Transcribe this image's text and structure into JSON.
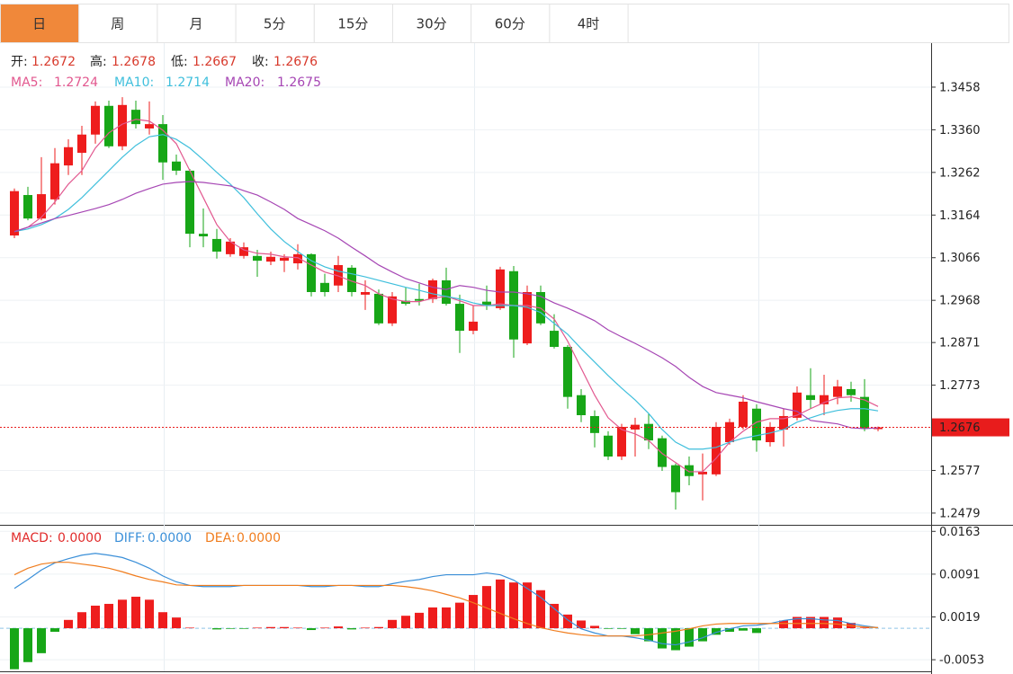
{
  "tabs": [
    "日",
    "周",
    "月",
    "5分",
    "15分",
    "30分",
    "60分",
    "4时"
  ],
  "active_tab": 0,
  "chart_data": [
    {
      "type": "candlestick",
      "summary": [
        {
          "label": "开:",
          "value": "1.2672"
        },
        {
          "label": "高:",
          "value": "1.2678"
        },
        {
          "label": "低:",
          "value": "1.2667"
        },
        {
          "label": "收:",
          "value": "1.2676"
        }
      ],
      "up_color": "#ee1d1d",
      "down_color": "#17a617",
      "open": [
        1.3117,
        1.321,
        1.3156,
        1.32,
        1.3278,
        1.3307,
        1.3349,
        1.3415,
        1.3322,
        1.3406,
        1.3363,
        1.3373,
        1.3287,
        1.3266,
        1.3121,
        1.3109,
        1.3074,
        1.307,
        1.307,
        1.3057,
        1.3059,
        1.3053,
        1.3074,
        1.3008,
        1.3002,
        1.3043,
        1.2981,
        1.2983,
        1.2915,
        1.2967,
        1.2971,
        1.2971,
        1.3014,
        1.296,
        1.2898,
        1.2965,
        1.295,
        1.3035,
        1.2869,
        1.2987,
        1.2898,
        1.2861,
        1.275,
        1.2702,
        1.2657,
        1.2609,
        1.2671,
        1.2684,
        1.2651,
        1.2589,
        1.2589,
        1.2568,
        1.2568,
        1.2642,
        1.2677,
        1.2719,
        1.2642,
        1.2671,
        1.2698,
        1.275,
        1.2729,
        1.2746,
        1.2764,
        1.2746,
        1.2672
      ],
      "high": [
        1.3225,
        1.3229,
        1.3297,
        1.3318,
        1.3338,
        1.3369,
        1.3425,
        1.3427,
        1.3435,
        1.3427,
        1.3425,
        1.3394,
        1.3303,
        1.327,
        1.3179,
        1.3132,
        1.3111,
        1.3101,
        1.3084,
        1.308,
        1.3074,
        1.3097,
        1.3076,
        1.3029,
        1.307,
        1.3049,
        1.3014,
        1.2993,
        1.2987,
        1.2998,
        1.3006,
        1.3018,
        1.3043,
        1.2981,
        1.2956,
        1.3002,
        1.3045,
        1.3047,
        1.3002,
        1.3002,
        1.2936,
        1.2865,
        1.2764,
        1.2715,
        1.2667,
        1.2684,
        1.2698,
        1.2708,
        1.2657,
        1.2593,
        1.2609,
        1.2616,
        1.2688,
        1.2696,
        1.275,
        1.2729,
        1.2688,
        1.2719,
        1.277,
        1.2812,
        1.2797,
        1.2785,
        1.2781,
        1.2787,
        1.2678
      ],
      "low": [
        1.3111,
        1.3152,
        1.3152,
        1.3188,
        1.3256,
        1.3256,
        1.3328,
        1.3318,
        1.3313,
        1.3363,
        1.3349,
        1.3245,
        1.3256,
        1.309,
        1.309,
        1.3064,
        1.3068,
        1.3064,
        1.3022,
        1.3049,
        1.3033,
        1.3039,
        1.2977,
        1.2977,
        1.2987,
        1.2977,
        1.2946,
        1.2911,
        1.2909,
        1.2956,
        1.2956,
        1.2962,
        1.2956,
        1.2847,
        1.289,
        1.2946,
        1.2946,
        1.2836,
        1.2865,
        1.2911,
        1.2857,
        1.2719,
        1.2688,
        1.263,
        1.2601,
        1.2601,
        1.2609,
        1.2626,
        1.2576,
        1.2487,
        1.2543,
        1.2508,
        1.2564,
        1.2636,
        1.2671,
        1.262,
        1.2632,
        1.2632,
        1.2692,
        1.2719,
        1.2704,
        1.2729,
        1.2735,
        1.2667,
        1.2667
      ],
      "close": [
        1.3219,
        1.3156,
        1.3212,
        1.3283,
        1.332,
        1.3349,
        1.3415,
        1.3322,
        1.3417,
        1.3373,
        1.3373,
        1.3285,
        1.3266,
        1.3121,
        1.3115,
        1.308,
        1.3103,
        1.309,
        1.3059,
        1.3068,
        1.3066,
        1.3074,
        1.2987,
        1.2987,
        1.3049,
        1.2987,
        1.2987,
        1.2915,
        1.2977,
        1.296,
        1.2967,
        1.3014,
        1.296,
        1.2898,
        1.2919,
        1.2956,
        1.3039,
        1.2878,
        1.2987,
        1.2915,
        1.2861,
        1.2746,
        1.2704,
        1.2663,
        1.2609,
        1.2677,
        1.2682,
        1.2646,
        1.2585,
        1.2527,
        1.2564,
        1.2574,
        1.2677,
        1.2688,
        1.2735,
        1.2646,
        1.2677,
        1.2702,
        1.2756,
        1.2739,
        1.275,
        1.277,
        1.275,
        1.2673,
        1.2676
      ],
      "series": [
        {
          "name": "MA5:",
          "last": "1.2724",
          "color": "#e2588f",
          "values": [
            1.3126,
            1.3136,
            1.3159,
            1.3194,
            1.3235,
            1.3266,
            1.3318,
            1.3353,
            1.3373,
            1.3384,
            1.338,
            1.3359,
            1.3328,
            1.3266,
            1.3204,
            1.3142,
            1.3103,
            1.3084,
            1.3076,
            1.3074,
            1.3068,
            1.3066,
            1.3049,
            1.3033,
            1.3024,
            1.3012,
            1.3002,
            1.2983,
            1.2971,
            1.2965,
            1.2965,
            1.2973,
            1.2977,
            1.2967,
            1.2956,
            1.2956,
            1.296,
            1.2956,
            1.2956,
            1.295,
            1.2925,
            1.2874,
            1.2812,
            1.275,
            1.2698,
            1.2671,
            1.2661,
            1.2646,
            1.2616,
            1.2595,
            1.2574,
            1.2574,
            1.2605,
            1.2642,
            1.2667,
            1.2688,
            1.2696,
            1.2696,
            1.2704,
            1.2719,
            1.2733,
            1.2744,
            1.2746,
            1.2739,
            1.2724
          ]
        },
        {
          "name": "MA10:",
          "last": "1.2714",
          "color": "#3fbfdc",
          "values": [
            1.3126,
            1.3132,
            1.3142,
            1.3156,
            1.3177,
            1.3204,
            1.3235,
            1.3266,
            1.3297,
            1.3324,
            1.3344,
            1.3349,
            1.3338,
            1.3318,
            1.3291,
            1.3262,
            1.3235,
            1.3204,
            1.3167,
            1.3132,
            1.3103,
            1.308,
            1.3059,
            1.3045,
            1.3035,
            1.3029,
            1.3022,
            1.3014,
            1.3006,
            1.2998,
            1.2991,
            1.2983,
            1.2977,
            1.2971,
            1.2962,
            1.2956,
            1.2956,
            1.2956,
            1.2952,
            1.294,
            1.2915,
            1.289,
            1.2857,
            1.2826,
            1.2795,
            1.2766,
            1.2739,
            1.2708,
            1.2671,
            1.2642,
            1.2626,
            1.2626,
            1.263,
            1.2642,
            1.2651,
            1.2657,
            1.2663,
            1.2671,
            1.2688,
            1.2698,
            1.2708,
            1.2715,
            1.2719,
            1.2719,
            1.2714
          ]
        },
        {
          "name": "MA20:",
          "last": "1.2675",
          "color": "#a646b4",
          "values": [
            1.3126,
            1.3136,
            1.3146,
            1.3156,
            1.3163,
            1.3171,
            1.3179,
            1.3188,
            1.32,
            1.3214,
            1.3225,
            1.3235,
            1.3239,
            1.3241,
            1.3239,
            1.3235,
            1.3231,
            1.322,
            1.321,
            1.3194,
            1.3177,
            1.3156,
            1.3142,
            1.3128,
            1.3111,
            1.309,
            1.307,
            1.3049,
            1.3033,
            1.3018,
            1.3008,
            1.2998,
            1.2993,
            1.3002,
            1.2998,
            1.2991,
            1.2987,
            1.2987,
            1.2983,
            1.2977,
            1.2962,
            1.295,
            1.2936,
            1.2921,
            1.29,
            1.2884,
            1.2869,
            1.2853,
            1.2836,
            1.2816,
            1.2791,
            1.277,
            1.2756,
            1.275,
            1.2744,
            1.2735,
            1.2727,
            1.2719,
            1.2713,
            1.2692,
            1.2688,
            1.2684,
            1.2675,
            1.2673,
            1.2675
          ]
        }
      ],
      "last_price": 1.2676,
      "last_price_color": "#e81c1c",
      "ylim": [
        1.2452,
        1.3555
      ],
      "yticks": [
        1.3458,
        {
          "value": 1.336,
          "label": "1.3360"
        },
        1.3262,
        1.3164,
        1.3066,
        1.2968,
        1.2871,
        1.2773,
        1.2577,
        1.2479
      ],
      "grid": true
    },
    {
      "type": "macd",
      "up_color": "#ee1d1d",
      "down_color": "#17a617",
      "series": [
        {
          "name": "MACD:",
          "last": "0.0000",
          "color": "#e02b2b",
          "values": [
            -0.0069,
            -0.0057,
            -0.0042,
            -0.0006,
            0.0014,
            0.0027,
            0.0038,
            0.0041,
            0.0048,
            0.0053,
            0.0048,
            0.0027,
            0.0018,
            0.0001,
            0.0,
            -0.0002,
            -0.0001,
            -0.0001,
            0.0001,
            0.0002,
            0.0002,
            0.0001,
            -0.0003,
            0.0001,
            0.0003,
            -0.0002,
            0.0001,
            0.0002,
            0.0014,
            0.0021,
            0.0026,
            0.0035,
            0.0035,
            0.0043,
            0.0056,
            0.0071,
            0.0082,
            0.0077,
            0.0077,
            0.0064,
            0.0041,
            0.0023,
            0.0013,
            0.0004,
            -0.0001,
            -0.0001,
            -0.001,
            -0.0022,
            -0.0034,
            -0.0037,
            -0.0031,
            -0.0022,
            -0.0011,
            -0.0006,
            -0.0004,
            -0.0008,
            0.0,
            0.0013,
            0.0019,
            0.0019,
            0.0019,
            0.0018,
            0.0009,
            0.0001,
            0.0
          ]
        },
        {
          "name": "DIFF:",
          "last": "0.0000",
          "color": "#3a8fd8",
          "values": [
            0.0067,
            0.0082,
            0.0098,
            0.011,
            0.0117,
            0.0123,
            0.0126,
            0.0123,
            0.0119,
            0.0111,
            0.0101,
            0.0088,
            0.0078,
            0.0072,
            0.007,
            0.007,
            0.007,
            0.0072,
            0.0072,
            0.0072,
            0.0072,
            0.0072,
            0.007,
            0.007,
            0.0072,
            0.0072,
            0.007,
            0.007,
            0.0075,
            0.0079,
            0.0082,
            0.0087,
            0.009,
            0.009,
            0.009,
            0.0093,
            0.009,
            0.0081,
            0.0067,
            0.0052,
            0.0033,
            0.0014,
            -0.0001,
            -0.0008,
            -0.0013,
            -0.0013,
            -0.0016,
            -0.002,
            -0.0026,
            -0.0028,
            -0.0023,
            -0.0016,
            -0.0007,
            -0.0001,
            0.0004,
            0.0005,
            0.0008,
            0.0013,
            0.0016,
            0.0016,
            0.0014,
            0.0013,
            0.0008,
            0.0004,
            0.0001
          ]
        },
        {
          "name": "DEA:",
          "last": "0.0000",
          "color": "#f07d1e",
          "values": [
            0.009,
            0.0101,
            0.0108,
            0.0111,
            0.0111,
            0.0108,
            0.0105,
            0.0101,
            0.0095,
            0.0088,
            0.0082,
            0.0078,
            0.0073,
            0.0072,
            0.0072,
            0.0072,
            0.0072,
            0.0072,
            0.0072,
            0.0072,
            0.0072,
            0.0072,
            0.0072,
            0.0072,
            0.0072,
            0.0072,
            0.0072,
            0.0072,
            0.0072,
            0.007,
            0.0067,
            0.0063,
            0.0057,
            0.0051,
            0.0043,
            0.0034,
            0.0025,
            0.0016,
            0.0008,
            0.0001,
            -0.0004,
            -0.0008,
            -0.0011,
            -0.0013,
            -0.0013,
            -0.0013,
            -0.0013,
            -0.0011,
            -0.0008,
            -0.0005,
            -0.0001,
            0.0004,
            0.0007,
            0.0008,
            0.0008,
            0.0008,
            0.0008,
            0.0008,
            0.0008,
            0.0008,
            0.0008,
            0.0007,
            0.0004,
            0.0002,
            0.0001
          ]
        }
      ],
      "ylim": [
        -0.0074,
        0.0171
      ],
      "yticks": [
        0.0163,
        0.0091,
        0.0019,
        -0.0053
      ],
      "grid": true
    }
  ]
}
